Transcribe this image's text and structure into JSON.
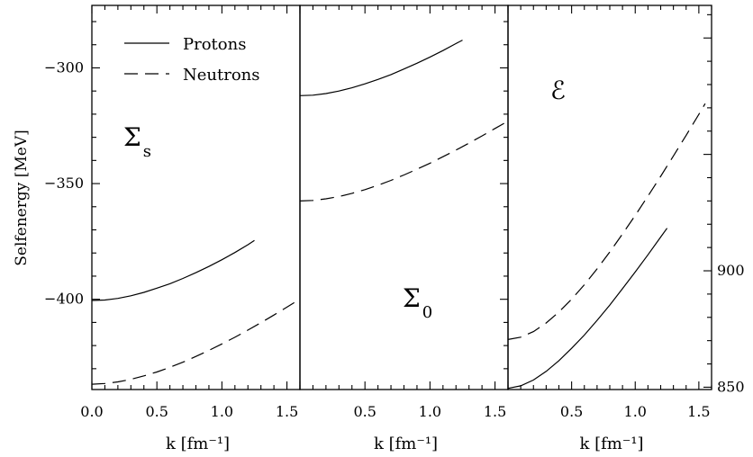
{
  "chart_data": [
    {
      "type": "line",
      "panel_label": "Σs",
      "ylabel": "Selfenergy [MeV]",
      "xlabel": "k [fm⁻¹]",
      "xlim": [
        0,
        1.6
      ],
      "ylim": [
        -439,
        -273
      ],
      "xticks": [
        0.0,
        0.5,
        1.0,
        1.5
      ],
      "xtick_labels": [
        "0.0",
        "0.5",
        "1.0",
        "1.5"
      ],
      "yticks": [
        -300,
        -350,
        -400
      ],
      "ytick_labels": [
        "−300",
        "−350",
        "−400"
      ],
      "legend": [
        "Protons",
        "Neutrons"
      ],
      "legend_position": "top",
      "series": [
        {
          "name": "Protons",
          "style": "solid",
          "x": [
            0,
            0.1,
            0.2,
            0.3,
            0.4,
            0.5,
            0.6,
            0.7,
            0.8,
            0.9,
            1.0,
            1.1,
            1.2,
            1.25
          ],
          "values": [
            -400.5,
            -400.3,
            -399.6,
            -398.5,
            -397.0,
            -395.2,
            -393.3,
            -391.0,
            -388.5,
            -385.8,
            -382.9,
            -379.8,
            -376.4,
            -374.6
          ]
        },
        {
          "name": "Neutrons",
          "style": "dashed",
          "x": [
            0,
            0.1,
            0.2,
            0.3,
            0.4,
            0.5,
            0.6,
            0.7,
            0.8,
            0.9,
            1.0,
            1.1,
            1.2,
            1.3,
            1.4,
            1.5,
            1.6
          ],
          "values": [
            -436.7,
            -436.4,
            -435.7,
            -434.6,
            -433.1,
            -431.4,
            -429.4,
            -427.2,
            -424.7,
            -422.1,
            -419.3,
            -416.4,
            -413.3,
            -410.1,
            -406.8,
            -403.4,
            -399.9
          ]
        }
      ]
    },
    {
      "type": "line",
      "panel_label": "Σ0",
      "xlabel": "k [fm⁻¹]",
      "xlim": [
        0,
        1.6
      ],
      "xticks": [
        0.5,
        1.0,
        1.5
      ],
      "xtick_labels": [
        "0.5",
        "1.0",
        "1.5"
      ],
      "series": [
        {
          "name": "Protons",
          "style": "solid",
          "x": [
            0,
            0.1,
            0.2,
            0.3,
            0.4,
            0.5,
            0.6,
            0.7,
            0.8,
            0.9,
            1.0,
            1.1,
            1.2,
            1.25
          ],
          "values": [
            -312.0,
            -311.8,
            -311.1,
            -310.0,
            -308.6,
            -306.9,
            -305.0,
            -302.9,
            -300.5,
            -298.0,
            -295.3,
            -292.5,
            -289.5,
            -288.0
          ]
        },
        {
          "name": "Neutrons",
          "style": "dashed",
          "x": [
            0,
            0.1,
            0.2,
            0.3,
            0.4,
            0.5,
            0.6,
            0.7,
            0.8,
            0.9,
            1.0,
            1.1,
            1.2,
            1.3,
            1.4,
            1.5,
            1.6
          ],
          "values": [
            -357.5,
            -357.3,
            -356.6,
            -355.6,
            -354.2,
            -352.6,
            -350.7,
            -348.6,
            -346.3,
            -343.8,
            -341.2,
            -338.4,
            -335.5,
            -332.5,
            -329.4,
            -326.2,
            -323.0
          ]
        }
      ]
    },
    {
      "type": "line",
      "panel_label": "ℰ",
      "xlabel": "k [fm⁻¹]",
      "xlim": [
        0,
        1.6
      ],
      "ylim": [
        849,
        1014
      ],
      "xticks": [
        0.5,
        1.0,
        1.5
      ],
      "xtick_labels": [
        "0.5",
        "1.0",
        "1.5"
      ],
      "yticks": [
        850,
        900
      ],
      "ytick_labels": [
        "850",
        "900"
      ],
      "series": [
        {
          "name": "Protons",
          "style": "solid",
          "x": [
            0,
            0.1,
            0.2,
            0.3,
            0.4,
            0.5,
            0.6,
            0.7,
            0.8,
            0.9,
            1.0,
            1.1,
            1.2,
            1.25
          ],
          "values": [
            849.5,
            850.6,
            853.1,
            856.8,
            861.4,
            866.7,
            872.4,
            878.7,
            885.3,
            892.3,
            899.5,
            906.9,
            914.5,
            918.3
          ]
        },
        {
          "name": "Neutrons",
          "style": "dashed",
          "x": [
            0,
            0.1,
            0.2,
            0.3,
            0.4,
            0.5,
            0.6,
            0.7,
            0.8,
            0.9,
            1.0,
            1.1,
            1.2,
            1.3,
            1.4,
            1.5,
            1.55
          ],
          "values": [
            870.5,
            871.5,
            873.9,
            877.6,
            882.3,
            887.8,
            894.0,
            900.8,
            908.1,
            915.8,
            923.8,
            932.1,
            940.6,
            949.3,
            958.2,
            967.2,
            971.8
          ]
        }
      ]
    }
  ]
}
